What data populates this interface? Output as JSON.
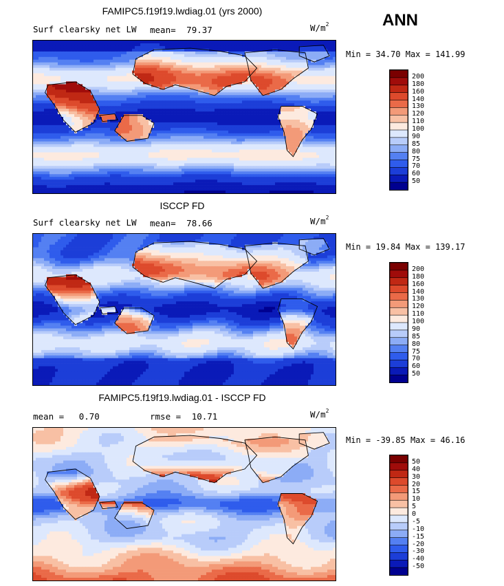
{
  "season": "ANN",
  "colors": {
    "ramp13": [
      "#000090",
      "#0a1ab8",
      "#1c3ed8",
      "#2f5cec",
      "#5480f2",
      "#8cacf6",
      "#c8dcfc",
      "#fbe0d0",
      "#f8c0a4",
      "#f39a78",
      "#ea6a48",
      "#d03a1e",
      "#a00c0a"
    ],
    "ramp16": [
      "#000090",
      "#0a1ab8",
      "#1c3ed8",
      "#2f5cec",
      "#5480f2",
      "#8cacf6",
      "#b8ccfa",
      "#dde8fd",
      "#fdeadf",
      "#f8c0a4",
      "#f39a78",
      "#ea6a48",
      "#dd4a2c",
      "#c02814",
      "#a00c0a",
      "#7a0000"
    ]
  },
  "chart_data": [
    {
      "type": "heatmap",
      "title": "FAMIPC5.f19f19.lwdiag.01 (yrs 2000)",
      "variable": "Surf clearsky net LW",
      "stat_label": "mean=",
      "stat_value": "79.37",
      "units": "W/m",
      "units_exp": "2",
      "min_label": "Min =",
      "min_value": "34.70",
      "max_label": "Max =",
      "max_value": "141.99",
      "colorbar_levels": [
        "200",
        "180",
        "160",
        "140",
        "130",
        "120",
        "110",
        "100",
        "90",
        "85",
        "80",
        "75",
        "70",
        "60",
        "50"
      ],
      "palette": "ramp16",
      "field": "model"
    },
    {
      "type": "heatmap",
      "title": "ISCCP FD",
      "variable": "Surf clearsky net LW",
      "stat_label": "mean=",
      "stat_value": "78.66",
      "units": "W/m",
      "units_exp": "2",
      "min_label": "Min =",
      "min_value": "19.84",
      "max_label": "Max =",
      "max_value": "139.17",
      "colorbar_levels": [
        "200",
        "180",
        "160",
        "140",
        "130",
        "120",
        "110",
        "100",
        "90",
        "85",
        "80",
        "75",
        "70",
        "60",
        "50"
      ],
      "palette": "ramp16",
      "field": "obs"
    },
    {
      "type": "heatmap",
      "title": "FAMIPC5.f19f19.lwdiag.01 - ISCCP FD",
      "mean_label": "mean =",
      "mean_value": "0.70",
      "rmse_label": "rmse =",
      "rmse_value": "10.71",
      "units": "W/m",
      "units_exp": "2",
      "min_label": "Min =",
      "min_value": "-39.85",
      "max_label": "Max =",
      "max_value": "46.16",
      "colorbar_levels": [
        "50",
        "40",
        "30",
        "20",
        "15",
        "10",
        "5",
        "0",
        "-5",
        "-10",
        "-15",
        "-20",
        "-30",
        "-40",
        "-50"
      ],
      "palette": "ramp16",
      "field": "diff"
    }
  ]
}
